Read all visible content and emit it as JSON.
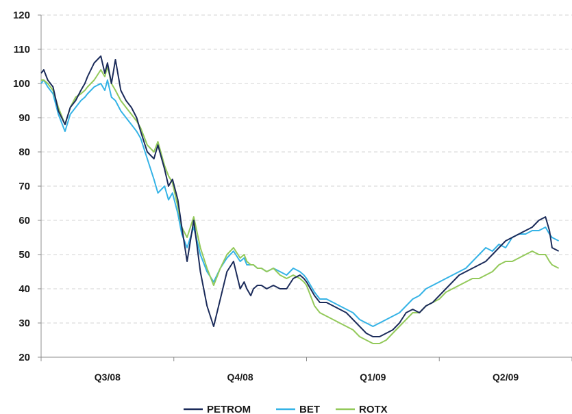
{
  "chart_data": {
    "type": "line",
    "title": "",
    "xlabel": "",
    "ylabel": "",
    "ylim": [
      20,
      120
    ],
    "yticks": [
      20,
      30,
      40,
      50,
      60,
      70,
      80,
      90,
      100,
      110,
      120
    ],
    "categories": [
      "Q3/08",
      "Q4/08",
      "Q1/09",
      "Q2/09"
    ],
    "grid": "horizontal-dashed",
    "legend": "bottom-center",
    "colors": {
      "PETROM": "#1b2b5a",
      "BET": "#35b3e6",
      "ROTX": "#93c95a",
      "grid": "#d3d3d3",
      "axis": "#8c8c8c"
    },
    "series": [
      {
        "name": "PETROM",
        "x": [
          0,
          0.02,
          0.05,
          0.09,
          0.13,
          0.18,
          0.22,
          0.26,
          0.3,
          0.33,
          0.35,
          0.4,
          0.45,
          0.48,
          0.5,
          0.53,
          0.56,
          0.6,
          0.64,
          0.68,
          0.72,
          0.75,
          0.8,
          0.85,
          0.88,
          0.93,
          0.96,
          0.99,
          1.03,
          1.06,
          1.1,
          1.15,
          1.2,
          1.25,
          1.3,
          1.35,
          1.4,
          1.45,
          1.5,
          1.53,
          1.55,
          1.58,
          1.6,
          1.63,
          1.66,
          1.7,
          1.75,
          1.8,
          1.85,
          1.9,
          1.95,
          1.98,
          2.0,
          2.03,
          2.06,
          2.1,
          2.15,
          2.2,
          2.25,
          2.3,
          2.35,
          2.4,
          2.45,
          2.5,
          2.55,
          2.6,
          2.65,
          2.7,
          2.75,
          2.8,
          2.85,
          2.9,
          2.95,
          3.0,
          3.05,
          3.1,
          3.15,
          3.2,
          3.25,
          3.3,
          3.35,
          3.4,
          3.45,
          3.5,
          3.55,
          3.6,
          3.65,
          3.7,
          3.75,
          3.8,
          3.83,
          3.85,
          3.9
        ],
        "values": [
          103,
          104,
          101,
          99,
          92,
          88,
          93,
          95,
          98,
          100,
          102,
          106,
          108,
          103,
          106,
          100,
          107,
          98,
          95,
          93,
          90,
          86,
          80,
          78,
          82,
          75,
          70,
          72,
          66,
          58,
          48,
          60,
          45,
          35,
          29,
          37,
          45,
          48,
          40,
          42,
          40,
          38,
          40,
          41,
          41,
          40,
          41,
          40,
          40,
          43,
          44,
          43,
          42,
          40,
          38,
          36,
          36,
          35,
          34,
          33,
          31,
          29,
          27,
          26,
          26,
          27,
          28,
          30,
          33,
          34,
          33,
          35,
          36,
          38,
          40,
          42,
          44,
          45,
          46,
          47,
          48,
          50,
          52,
          54,
          55,
          56,
          57,
          58,
          60,
          61,
          57,
          52,
          51
        ]
      },
      {
        "name": "BET",
        "x": [
          0,
          0.02,
          0.05,
          0.09,
          0.13,
          0.18,
          0.22,
          0.26,
          0.3,
          0.33,
          0.35,
          0.4,
          0.45,
          0.48,
          0.5,
          0.53,
          0.56,
          0.6,
          0.64,
          0.68,
          0.72,
          0.75,
          0.8,
          0.85,
          0.88,
          0.93,
          0.96,
          0.99,
          1.03,
          1.06,
          1.1,
          1.15,
          1.2,
          1.25,
          1.3,
          1.35,
          1.4,
          1.45,
          1.5,
          1.53,
          1.55,
          1.58,
          1.6,
          1.63,
          1.66,
          1.7,
          1.75,
          1.8,
          1.85,
          1.9,
          1.95,
          1.98,
          2.0,
          2.03,
          2.06,
          2.1,
          2.15,
          2.2,
          2.25,
          2.3,
          2.35,
          2.4,
          2.45,
          2.5,
          2.55,
          2.6,
          2.65,
          2.7,
          2.75,
          2.8,
          2.85,
          2.9,
          2.95,
          3.0,
          3.05,
          3.1,
          3.15,
          3.2,
          3.25,
          3.3,
          3.35,
          3.4,
          3.45,
          3.5,
          3.55,
          3.6,
          3.65,
          3.7,
          3.75,
          3.8,
          3.83,
          3.85,
          3.9
        ],
        "values": [
          100,
          101,
          99,
          97,
          91,
          86,
          91,
          93,
          95,
          96,
          97,
          99,
          100,
          98,
          101,
          96,
          95,
          92,
          90,
          88,
          86,
          84,
          78,
          72,
          68,
          70,
          66,
          68,
          62,
          56,
          52,
          58,
          50,
          45,
          42,
          46,
          49,
          51,
          48,
          49,
          47,
          47,
          47,
          46,
          46,
          45,
          46,
          45,
          44,
          46,
          45,
          44,
          43,
          41,
          39,
          37,
          37,
          36,
          35,
          34,
          33,
          31,
          30,
          29,
          30,
          31,
          32,
          33,
          35,
          37,
          38,
          40,
          41,
          42,
          43,
          44,
          45,
          46,
          48,
          50,
          52,
          51,
          53,
          52,
          55,
          56,
          56,
          57,
          57,
          58,
          56,
          55,
          54
        ]
      },
      {
        "name": "ROTX",
        "x": [
          0,
          0.02,
          0.05,
          0.09,
          0.13,
          0.18,
          0.22,
          0.26,
          0.3,
          0.33,
          0.35,
          0.4,
          0.45,
          0.48,
          0.5,
          0.53,
          0.56,
          0.6,
          0.64,
          0.68,
          0.72,
          0.75,
          0.8,
          0.85,
          0.88,
          0.93,
          0.96,
          0.99,
          1.03,
          1.06,
          1.1,
          1.15,
          1.2,
          1.25,
          1.3,
          1.35,
          1.4,
          1.45,
          1.5,
          1.53,
          1.55,
          1.58,
          1.6,
          1.63,
          1.66,
          1.7,
          1.75,
          1.8,
          1.85,
          1.9,
          1.95,
          1.98,
          2.0,
          2.03,
          2.06,
          2.1,
          2.15,
          2.2,
          2.25,
          2.3,
          2.35,
          2.4,
          2.45,
          2.5,
          2.55,
          2.6,
          2.65,
          2.7,
          2.75,
          2.8,
          2.85,
          2.9,
          2.95,
          3.0,
          3.05,
          3.1,
          3.15,
          3.2,
          3.25,
          3.3,
          3.35,
          3.4,
          3.45,
          3.5,
          3.55,
          3.6,
          3.65,
          3.7,
          3.75,
          3.8,
          3.83,
          3.85,
          3.9
        ],
        "values": [
          101,
          101,
          100,
          98,
          93,
          88,
          93,
          96,
          97,
          98,
          99,
          101,
          104,
          102,
          105,
          100,
          98,
          95,
          93,
          91,
          89,
          87,
          82,
          80,
          83,
          76,
          73,
          71,
          64,
          58,
          55,
          61,
          52,
          46,
          41,
          46,
          50,
          52,
          49,
          50,
          48,
          47,
          47,
          46,
          46,
          45,
          46,
          44,
          43,
          44,
          43,
          42,
          41,
          38,
          35,
          33,
          32,
          31,
          30,
          29,
          28,
          26,
          25,
          24,
          24,
          25,
          27,
          29,
          31,
          33,
          33,
          35,
          36,
          37,
          39,
          40,
          41,
          42,
          43,
          43,
          44,
          45,
          47,
          48,
          48,
          49,
          50,
          51,
          50,
          50,
          48,
          47,
          46
        ]
      }
    ]
  }
}
